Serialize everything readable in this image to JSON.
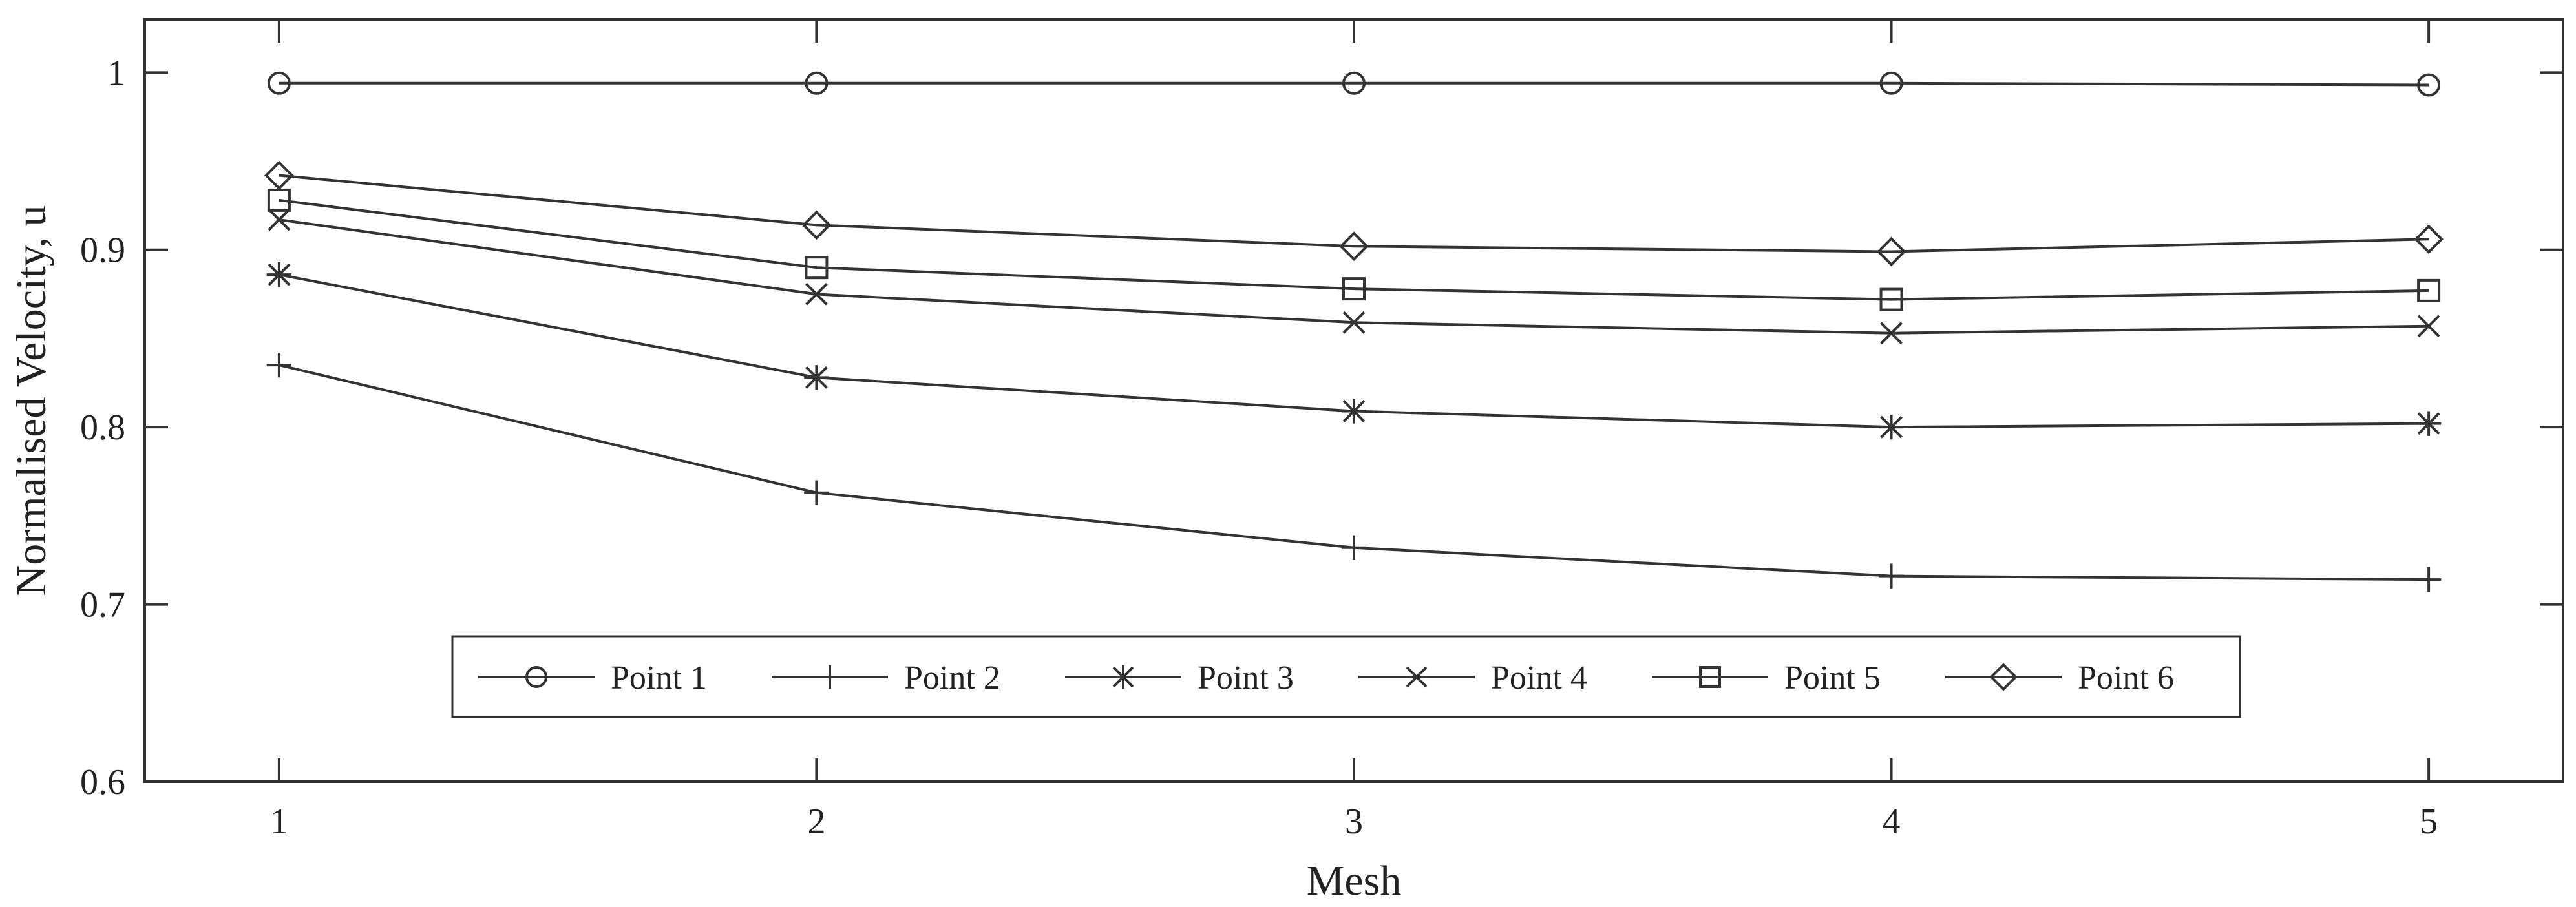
{
  "chart_data": {
    "type": "line",
    "xlabel": "Mesh",
    "ylabel": "Normalised Velocity, u",
    "x": [
      1,
      2,
      3,
      4,
      5
    ],
    "xlim": [
      0.75,
      5.25
    ],
    "ylim": [
      0.6,
      1.03
    ],
    "xticks": [
      1,
      2,
      3,
      4,
      5
    ],
    "yticks": [
      0.6,
      0.7,
      0.8,
      0.9,
      1
    ],
    "ytick_labels": [
      "0.6",
      "0.7",
      "0.8",
      "0.9",
      "1"
    ],
    "legend_position": "bottom-center",
    "grid": false,
    "line_color": "#333333",
    "series": [
      {
        "name": "Point 1",
        "marker": "circle",
        "values": [
          0.994,
          0.994,
          0.994,
          0.994,
          0.993
        ]
      },
      {
        "name": "Point 2",
        "marker": "plus",
        "values": [
          0.835,
          0.763,
          0.732,
          0.716,
          0.714
        ]
      },
      {
        "name": "Point 3",
        "marker": "star",
        "values": [
          0.886,
          0.828,
          0.809,
          0.8,
          0.802
        ]
      },
      {
        "name": "Point 4",
        "marker": "x",
        "values": [
          0.917,
          0.875,
          0.859,
          0.853,
          0.857
        ]
      },
      {
        "name": "Point 5",
        "marker": "square",
        "values": [
          0.928,
          0.89,
          0.878,
          0.872,
          0.877
        ]
      },
      {
        "name": "Point 6",
        "marker": "diamond",
        "values": [
          0.942,
          0.914,
          0.902,
          0.899,
          0.906
        ]
      }
    ]
  }
}
